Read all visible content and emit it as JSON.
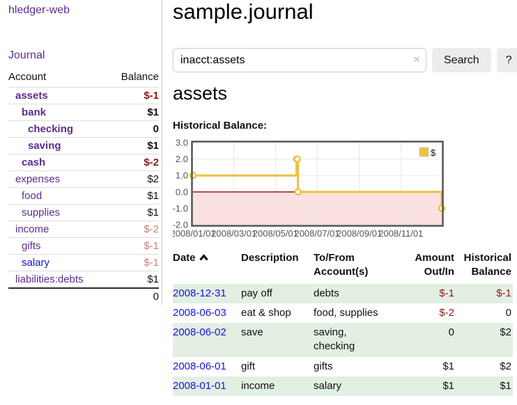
{
  "colors": {
    "link_purple": "#5b2d90",
    "link_blue": "#1414dd",
    "negative_strong": "#8b1a1a",
    "negative_soft": "#c5817e",
    "row_green": "#e3efe2",
    "accent_gold": "#edc240"
  },
  "app": {
    "brand": "hledger-web",
    "nav_journal": "Journal"
  },
  "sidebar": {
    "header": {
      "account": "Account",
      "balance": "Balance"
    },
    "accounts": [
      {
        "name": "assets",
        "balance": "$-1",
        "indent": 1,
        "bold": true,
        "tone": "neg"
      },
      {
        "name": "bank",
        "balance": "$1",
        "indent": 2,
        "bold": true,
        "tone": ""
      },
      {
        "name": "checking",
        "balance": "0",
        "indent": 3,
        "bold": true,
        "tone": ""
      },
      {
        "name": "saving",
        "balance": "$1",
        "indent": 3,
        "bold": true,
        "tone": ""
      },
      {
        "name": "cash",
        "balance": "$-2",
        "indent": 2,
        "bold": true,
        "tone": "neg"
      },
      {
        "name": "expenses",
        "balance": "$2",
        "indent": 1,
        "bold": false,
        "tone": ""
      },
      {
        "name": "food",
        "balance": "$1",
        "indent": 2,
        "bold": false,
        "tone": ""
      },
      {
        "name": "supplies",
        "balance": "$1",
        "indent": 2,
        "bold": false,
        "tone": ""
      },
      {
        "name": "income",
        "balance": "$-2",
        "indent": 1,
        "bold": false,
        "tone": "soft"
      },
      {
        "name": "gifts",
        "balance": "$-1",
        "indent": 2,
        "bold": false,
        "tone": "soft"
      },
      {
        "name": "salary",
        "balance": "$-1",
        "indent": 2,
        "bold": false,
        "tone": "soft",
        "blue": true
      },
      {
        "name": "liabilities:debts",
        "balance": "$1",
        "indent": 1,
        "bold": false,
        "tone": ""
      }
    ],
    "total": "0"
  },
  "main": {
    "title": "sample.journal",
    "search": {
      "value": "inacct:assets",
      "clear_icon": "×",
      "button_label": "Search",
      "help_label": "?"
    },
    "account_heading": "assets",
    "chart_label": "Historical Balance:"
  },
  "chart_data": {
    "type": "line",
    "title": "Historical Balance",
    "step": true,
    "series": [
      {
        "name": "$",
        "color": "#edc240",
        "points": [
          {
            "x": "2008-01-01",
            "y": 1
          },
          {
            "x": "2008-06-01",
            "y": 2
          },
          {
            "x": "2008-06-02",
            "y": 2
          },
          {
            "x": "2008-06-03",
            "y": 0
          },
          {
            "x": "2008-12-31",
            "y": -1
          }
        ]
      }
    ],
    "xticks": [
      "2008/01/01",
      "2008/03/01",
      "2008/05/01",
      "2008/07/01",
      "2008/09/01",
      "2008/11/01"
    ],
    "yticks": [
      3,
      2,
      1,
      0,
      -1,
      -2
    ],
    "ylim": [
      -2,
      3
    ],
    "xlim": [
      "2008-01-01",
      "2008-12-31"
    ],
    "legend": {
      "label": "$",
      "position": "top-right"
    },
    "grid": true,
    "negative_region_color": "#fbe1e1",
    "zero_line_color": "#8b0000",
    "border_color": "#545454",
    "tick_color": "#545454"
  },
  "register": {
    "headers": [
      {
        "lines": [
          "Date"
        ],
        "sortable": true,
        "sort_icon": "chevron-up"
      },
      {
        "lines": [
          "Description"
        ]
      },
      {
        "lines": [
          "To/From",
          "Account(s)"
        ]
      },
      {
        "lines": [
          "Amount",
          "Out/In"
        ],
        "align": "right"
      },
      {
        "lines": [
          "Historical",
          "Balance"
        ],
        "align": "right"
      }
    ],
    "rows": [
      {
        "date": "2008-12-31",
        "description": "pay off",
        "accounts": "debts",
        "amount": "$-1",
        "amount_tone": "neg",
        "balance": "$-1",
        "balance_tone": "neg"
      },
      {
        "date": "2008-06-03",
        "description": "eat & shop",
        "accounts": "food, supplies",
        "amount": "$-2",
        "amount_tone": "neg",
        "balance": "0",
        "balance_tone": ""
      },
      {
        "date": "2008-06-02",
        "description": "save",
        "accounts": "saving, checking",
        "amount": "0",
        "amount_tone": "",
        "balance": "$2",
        "balance_tone": ""
      },
      {
        "date": "2008-06-01",
        "description": "gift",
        "accounts": "gifts",
        "amount": "$1",
        "amount_tone": "",
        "balance": "$2",
        "balance_tone": ""
      },
      {
        "date": "2008-01-01",
        "description": "income",
        "accounts": "salary",
        "amount": "$1",
        "amount_tone": "",
        "balance": "$1",
        "balance_tone": ""
      }
    ]
  }
}
